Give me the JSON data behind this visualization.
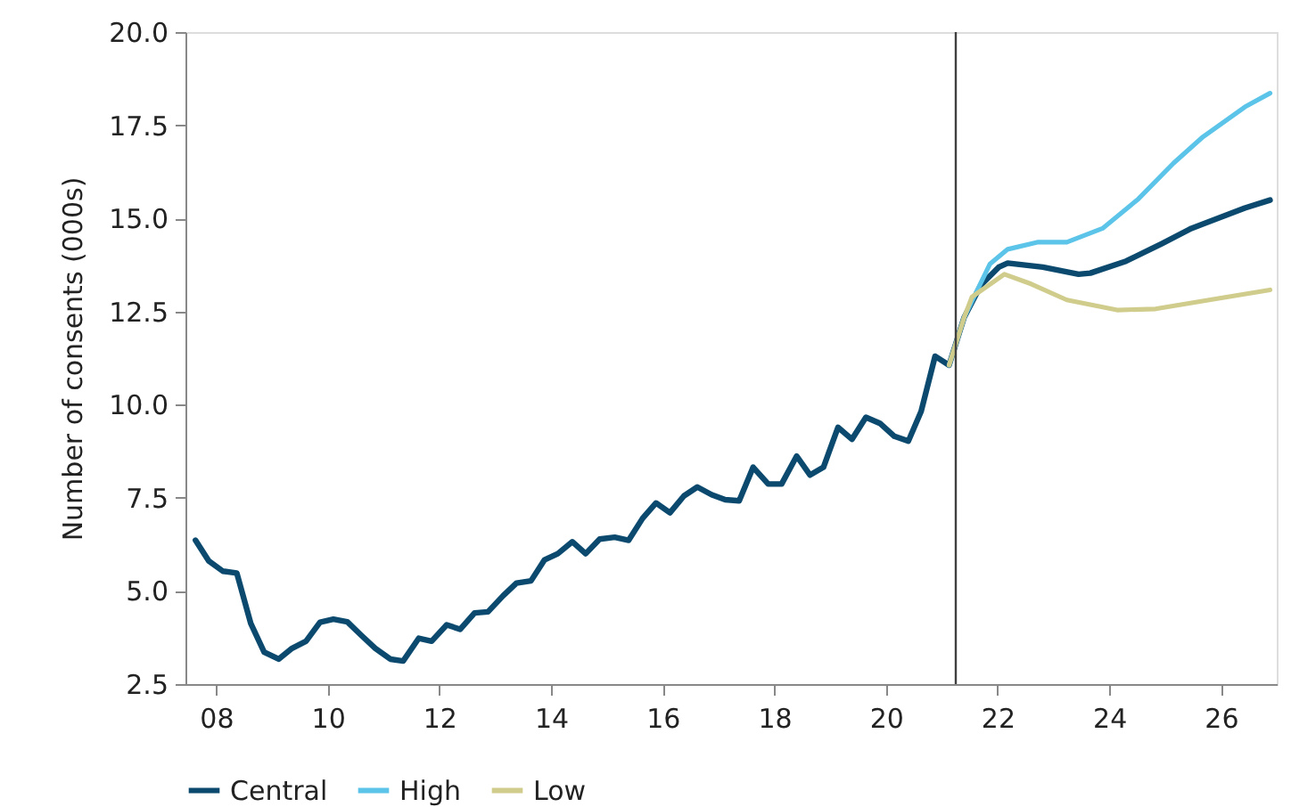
{
  "chart_data": {
    "type": "line",
    "ylabel": "Number of consents (000s)",
    "xlim": [
      7.45,
      27.0
    ],
    "xticks": [
      {
        "value": 8,
        "label": "08"
      },
      {
        "value": 10,
        "label": "10"
      },
      {
        "value": 12,
        "label": "12"
      },
      {
        "value": 14,
        "label": "14"
      },
      {
        "value": 16,
        "label": "16"
      },
      {
        "value": 18,
        "label": "18"
      },
      {
        "value": 20,
        "label": "20"
      },
      {
        "value": 22,
        "label": "22"
      },
      {
        "value": 24,
        "label": "24"
      },
      {
        "value": 26,
        "label": "26"
      }
    ],
    "ylim": [
      2.5,
      20.0
    ],
    "yticks": [
      {
        "value": 2.5,
        "label": "2.5"
      },
      {
        "value": 5,
        "label": "5.0"
      },
      {
        "value": 7.5,
        "label": "7.5"
      },
      {
        "value": 10,
        "label": "10.0"
      },
      {
        "value": 12.5,
        "label": "12.5"
      },
      {
        "value": 15,
        "label": "15.0"
      },
      {
        "value": 17.5,
        "label": "17.5"
      },
      {
        "value": 20,
        "label": "20.0"
      }
    ],
    "grid": false,
    "legend": "bottom",
    "line_style": "solid",
    "marker": "none",
    "ref_lines": [
      {
        "axis": "x",
        "value": 21.25,
        "color": "#404040"
      }
    ],
    "series": [
      {
        "name": "Central",
        "color": "#0b4a6e",
        "x": [
          7.63,
          7.87,
          8.12,
          8.37,
          8.62,
          8.86,
          9.12,
          9.36,
          9.61,
          9.86,
          10.1,
          10.35,
          10.6,
          10.85,
          11.12,
          11.35,
          11.63,
          11.86,
          12.13,
          12.37,
          12.63,
          12.87,
          13.14,
          13.38,
          13.64,
          13.88,
          14.12,
          14.38,
          14.62,
          14.87,
          15.14,
          15.39,
          15.64,
          15.88,
          16.13,
          16.38,
          16.62,
          16.88,
          17.12,
          17.37,
          17.62,
          17.89,
          18.13,
          18.4,
          18.64,
          18.88,
          19.14,
          19.39,
          19.64,
          19.89,
          20.15,
          20.4,
          20.63,
          20.88,
          21.13,
          21.4,
          21.7,
          22.02,
          22.18,
          22.81,
          23.45,
          23.66,
          24.3,
          24.94,
          25.47,
          26.43,
          26.88
        ],
        "values": [
          6.36,
          5.8,
          5.53,
          5.48,
          4.13,
          3.36,
          3.17,
          3.46,
          3.65,
          4.16,
          4.24,
          4.17,
          3.81,
          3.46,
          3.17,
          3.12,
          3.73,
          3.65,
          4.09,
          3.97,
          4.41,
          4.44,
          4.87,
          5.21,
          5.27,
          5.83,
          6.0,
          6.32,
          6.0,
          6.39,
          6.44,
          6.36,
          6.95,
          7.36,
          7.1,
          7.55,
          7.79,
          7.58,
          7.45,
          7.42,
          8.32,
          7.87,
          7.87,
          8.62,
          8.11,
          8.32,
          9.39,
          9.07,
          9.66,
          9.5,
          9.15,
          9.02,
          9.82,
          11.3,
          11.06,
          12.34,
          13.21,
          13.69,
          13.8,
          13.69,
          13.5,
          13.53,
          13.85,
          14.32,
          14.73,
          15.28,
          15.49
        ]
      },
      {
        "name": "High",
        "color": "#5bc4e8",
        "x": [
          21.13,
          21.4,
          21.86,
          22.18,
          22.71,
          23.24,
          23.88,
          24.52,
          25.15,
          25.68,
          26.43,
          26.88
        ],
        "values": [
          11.06,
          12.34,
          13.77,
          14.17,
          14.36,
          14.36,
          14.73,
          15.52,
          16.48,
          17.19,
          17.99,
          18.36
        ]
      },
      {
        "name": "Low",
        "color": "#d0cc8c",
        "x": [
          21.13,
          21.4,
          21.54,
          22.12,
          22.6,
          23.24,
          24.14,
          24.83,
          25.79,
          26.88
        ],
        "values": [
          11.06,
          12.34,
          12.89,
          13.5,
          13.24,
          12.81,
          12.54,
          12.57,
          12.81,
          13.08
        ]
      }
    ]
  }
}
